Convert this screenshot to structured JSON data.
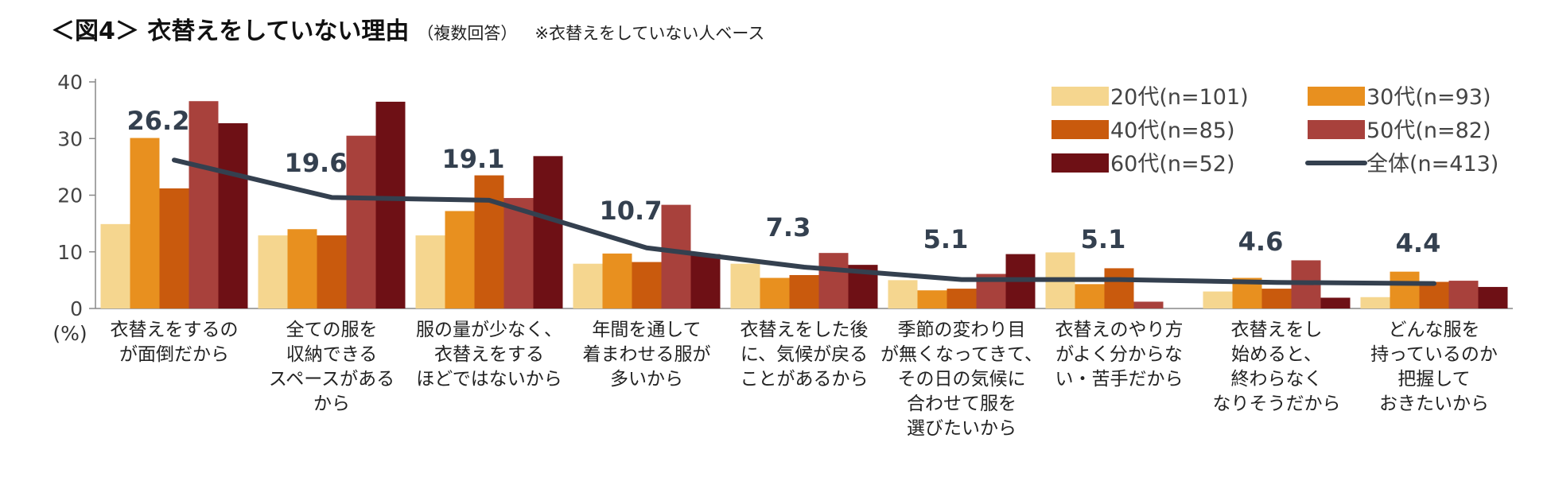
{
  "header": {
    "title": "＜図4＞ 衣替えをしていない理由",
    "subtitle": "（複数回答）",
    "base_note": "※衣替えをしていない人ベース"
  },
  "chart_data": {
    "type": "bar",
    "ylim": [
      0,
      40
    ],
    "yticks": [
      0,
      10,
      20,
      30,
      40
    ],
    "unit_label": "(%)",
    "grid": false,
    "legend_position": "top-right",
    "categories": [
      [
        "衣替えをするの",
        "が面倒だから"
      ],
      [
        "全ての服を",
        "収納できる",
        "スペースがある",
        "から"
      ],
      [
        "服の量が少なく、",
        "衣替えをする",
        "ほどではないから"
      ],
      [
        "年間を通して",
        "着まわせる服が",
        "多いから"
      ],
      [
        "衣替えをした後",
        "に、気候が戻る",
        "ことがあるから"
      ],
      [
        "季節の変わり目",
        "が無くなってきて、",
        "その日の気候に",
        "合わせて服を",
        "選びたいから"
      ],
      [
        "衣替えのやり方",
        "がよく分からな",
        "い・苦手だから"
      ],
      [
        "衣替えをし",
        "始めると、",
        "終わらなく",
        "なりそうだから"
      ],
      [
        "どんな服を",
        "持っているのか",
        "把握して",
        "おきたいから"
      ]
    ],
    "series": [
      {
        "name": "20代(n=101)",
        "color": "#f5d68f",
        "values": [
          14.9,
          12.9,
          12.9,
          7.9,
          7.9,
          5.0,
          9.9,
          3.0,
          2.0
        ]
      },
      {
        "name": "30代(n=93)",
        "color": "#e8901f",
        "values": [
          30.1,
          14.0,
          17.2,
          9.7,
          5.4,
          3.2,
          4.3,
          5.4,
          6.5
        ]
      },
      {
        "name": "40代(n=85)",
        "color": "#c95a0d",
        "values": [
          21.2,
          12.9,
          23.5,
          8.2,
          5.9,
          3.5,
          7.1,
          3.5,
          4.7
        ]
      },
      {
        "name": "50代(n=82)",
        "color": "#a8413c",
        "values": [
          36.6,
          30.5,
          19.5,
          18.3,
          9.8,
          6.1,
          1.2,
          8.5,
          4.9
        ]
      },
      {
        "name": "60代(n=52)",
        "color": "#6e1015",
        "values": [
          32.7,
          36.5,
          26.9,
          9.6,
          7.7,
          9.6,
          0.0,
          1.9,
          3.8
        ]
      }
    ],
    "total": {
      "name": "全体(n=413)",
      "color": "#34404f",
      "values": [
        26.2,
        19.6,
        19.1,
        10.7,
        7.3,
        5.1,
        5.1,
        4.6,
        4.4
      ],
      "labels": [
        "26.2",
        "19.6",
        "19.1",
        "10.7",
        "7.3",
        "5.1",
        "5.1",
        "4.6",
        "4.4"
      ]
    }
  }
}
